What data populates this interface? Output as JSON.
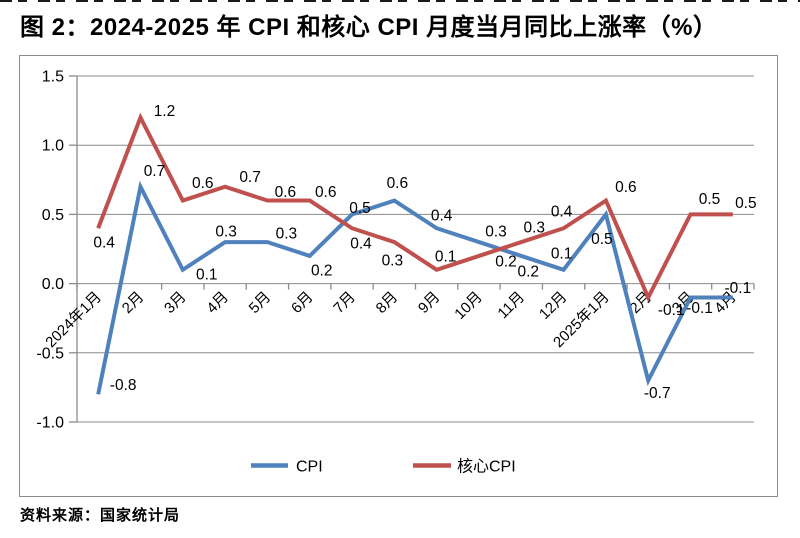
{
  "title": "图 2：2024-2025 年 CPI 和核心 CPI 月度当月同比上涨率（%）",
  "source": "资料来源：国家统计局",
  "colors": {
    "cpi_line": "#4F81BD",
    "core_cpi_line": "#C0504D",
    "gridline": "#8B8B8B",
    "frame_border": "#8A8A8A",
    "text": "#000000"
  },
  "legend": {
    "position": "bottom-center",
    "items": [
      {
        "label": "CPI",
        "color": "#4F81BD"
      },
      {
        "label": "核心CPI",
        "color": "#C0504D"
      }
    ]
  },
  "chart_data": {
    "type": "line",
    "title": "图 2：2024-2025 年 CPI 和核心 CPI 月度当月同比上涨率（%）",
    "xlabel": "",
    "ylabel": "",
    "categories": [
      "2024年1月",
      "2月",
      "3月",
      "4月",
      "5月",
      "6月",
      "7月",
      "8月",
      "9月",
      "10月",
      "11月",
      "12月",
      "2025年1月",
      "2月",
      "3月",
      "4月"
    ],
    "series": [
      {
        "id": "cpi",
        "name": "CPI",
        "color": "#4F81BD",
        "values": [
          -0.8,
          0.7,
          0.1,
          0.3,
          0.3,
          0.2,
          0.5,
          0.6,
          0.4,
          0.3,
          0.2,
          0.1,
          0.5,
          -0.7,
          -0.1,
          -0.1
        ],
        "label_offsets": [
          [
            25,
            -10
          ],
          [
            14,
            -16
          ],
          [
            24,
            4
          ],
          [
            1,
            -11
          ],
          [
            19,
            -9
          ],
          [
            12,
            14
          ],
          [
            8,
            -7
          ],
          [
            3,
            -18
          ],
          [
            5,
            -13
          ],
          [
            17,
            -11
          ],
          [
            7,
            15
          ],
          [
            -2,
            -17
          ],
          [
            -4,
            24
          ],
          [
            9,
            12
          ],
          [
            9,
            10
          ],
          [
            5,
            -10
          ]
        ]
      },
      {
        "id": "core-cpi",
        "name": "核心CPI",
        "color": "#C0504D",
        "values": [
          0.4,
          1.2,
          0.6,
          0.7,
          0.6,
          0.6,
          0.4,
          0.3,
          0.1,
          0.2,
          0.3,
          0.4,
          0.6,
          -0.1,
          0.5,
          0.5
        ],
        "label_offsets": [
          [
            6,
            14
          ],
          [
            24,
            -7
          ],
          [
            20,
            -18
          ],
          [
            25,
            -10
          ],
          [
            18,
            -9
          ],
          [
            16,
            -9
          ],
          [
            9,
            15
          ],
          [
            -2,
            18
          ],
          [
            9,
            -14
          ],
          [
            27,
            5
          ],
          [
            13,
            -15
          ],
          [
            -2,
            -17
          ],
          [
            20,
            -14
          ],
          [
            23,
            12
          ],
          [
            19,
            -16
          ],
          [
            13,
            -12
          ]
        ]
      }
    ],
    "ylim": [
      -1.0,
      1.5
    ],
    "ytick_step": 0.5,
    "ytick_labels": [
      "1.5",
      "1.0",
      "0.5",
      "0.0",
      "-0.5",
      "-1.0"
    ],
    "grid": true,
    "data_labels": true,
    "legend_position": "bottom",
    "line_width": 4
  }
}
